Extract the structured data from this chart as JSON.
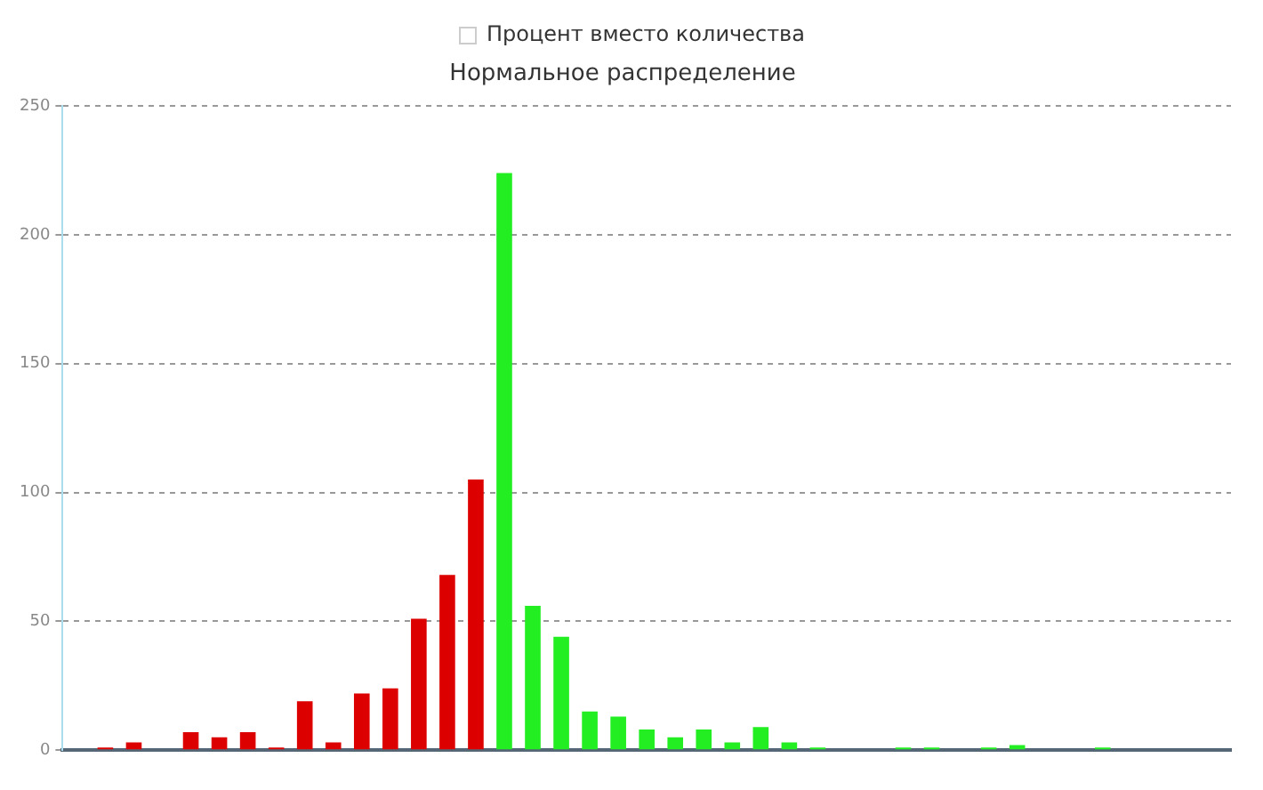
{
  "chart_data": {
    "type": "bar",
    "title": "Нормальное распределение",
    "annotations": [
      "Процент вместо количества"
    ],
    "categories": [
      null,
      null,
      null,
      null,
      null,
      null,
      null,
      null,
      null,
      null,
      null,
      null,
      null,
      null,
      null,
      null,
      null,
      null,
      null,
      null,
      null,
      null,
      null,
      null,
      null,
      null,
      null,
      null,
      null,
      null,
      null,
      null,
      null,
      null,
      null,
      null,
      null,
      null,
      null,
      null,
      null
    ],
    "values": [
      0,
      1,
      3,
      0,
      7,
      5,
      7,
      1,
      19,
      3,
      22,
      24,
      51,
      68,
      105,
      224,
      56,
      44,
      15,
      13,
      8,
      5,
      8,
      3,
      9,
      3,
      1,
      0,
      0,
      1,
      1,
      0,
      1,
      2,
      0,
      0,
      1,
      0,
      0,
      0,
      0
    ],
    "colors": [
      "#dd0000",
      "#dd0000",
      "#dd0000",
      "#dd0000",
      "#dd0000",
      "#dd0000",
      "#dd0000",
      "#dd0000",
      "#dd0000",
      "#dd0000",
      "#dd0000",
      "#dd0000",
      "#dd0000",
      "#dd0000",
      "#dd0000",
      "#22ee22",
      "#22ee22",
      "#22ee22",
      "#22ee22",
      "#22ee22",
      "#22ee22",
      "#22ee22",
      "#22ee22",
      "#22ee22",
      "#22ee22",
      "#22ee22",
      "#22ee22",
      "#22ee22",
      "#22ee22",
      "#22ee22",
      "#22ee22",
      "#22ee22",
      "#22ee22",
      "#22ee22",
      "#22ee22",
      "#22ee22",
      "#22ee22",
      "#22ee22",
      "#22ee22",
      "#22ee22",
      "#22ee22"
    ],
    "ylim": [
      0,
      250
    ],
    "yticks": [
      0,
      50,
      100,
      150,
      200,
      250
    ],
    "grid": "y",
    "legend": false,
    "tick_labels": "y"
  }
}
